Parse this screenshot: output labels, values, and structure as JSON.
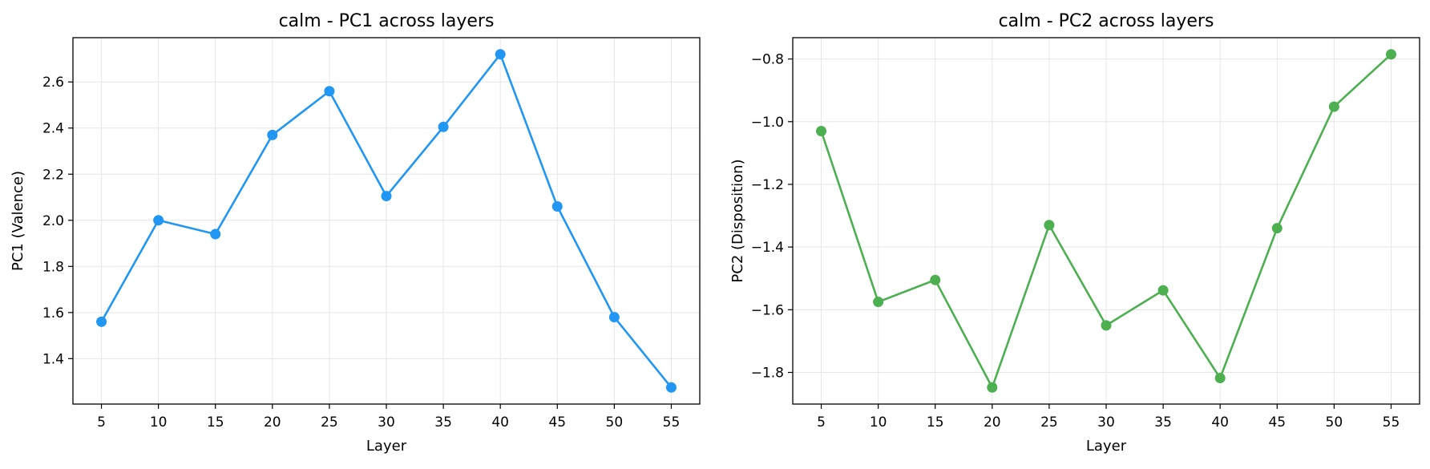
{
  "chart_data": [
    {
      "type": "line",
      "title": "calm - PC1 across layers",
      "xlabel": "Layer",
      "ylabel": "PC1 (Valence)",
      "x": [
        5,
        10,
        15,
        20,
        25,
        30,
        35,
        40,
        45,
        50,
        55
      ],
      "series": [
        {
          "values": [
            1.56,
            2.0,
            1.94,
            2.37,
            2.56,
            2.105,
            2.405,
            2.72,
            2.06,
            1.58,
            1.275
          ],
          "color": "#2196f3",
          "marker": "circle"
        }
      ],
      "xticks": [
        "5",
        "10",
        "15",
        "20",
        "25",
        "30",
        "35",
        "40",
        "45",
        "50",
        "55"
      ],
      "yticks": [
        {
          "value": 1.4,
          "label": "1.4"
        },
        {
          "value": 1.6,
          "label": "1.6"
        },
        {
          "value": 1.8,
          "label": "1.8"
        },
        {
          "value": 2.0,
          "label": "2.0"
        },
        {
          "value": 2.2,
          "label": "2.2"
        },
        {
          "value": 2.4,
          "label": "2.4"
        },
        {
          "value": 2.6,
          "label": "2.6"
        }
      ],
      "xlim": [
        2.5,
        57.5
      ],
      "ylim": [
        1.203,
        2.792
      ],
      "grid": true
    },
    {
      "type": "line",
      "title": "calm - PC2 across layers",
      "xlabel": "Layer",
      "ylabel": "PC2 (Disposition)",
      "x": [
        5,
        10,
        15,
        20,
        25,
        30,
        35,
        40,
        45,
        50,
        55
      ],
      "series": [
        {
          "values": [
            -1.03,
            -1.575,
            -1.505,
            -1.848,
            -1.33,
            -1.65,
            -1.538,
            -1.818,
            -1.34,
            -0.952,
            -0.785
          ],
          "color": "#4caf50",
          "marker": "circle"
        }
      ],
      "xticks": [
        "5",
        "10",
        "15",
        "20",
        "25",
        "30",
        "35",
        "40",
        "45",
        "50",
        "55"
      ],
      "yticks": [
        {
          "value": -1.8,
          "label": "−1.8"
        },
        {
          "value": -1.6,
          "label": "−1.6"
        },
        {
          "value": -1.4,
          "label": "−1.4"
        },
        {
          "value": -1.2,
          "label": "−1.2"
        },
        {
          "value": -1.0,
          "label": "−1.0"
        },
        {
          "value": -0.8,
          "label": "−0.8"
        }
      ],
      "xlim": [
        2.5,
        57.5
      ],
      "ylim": [
        -1.901,
        -0.732
      ],
      "grid": true
    }
  ]
}
